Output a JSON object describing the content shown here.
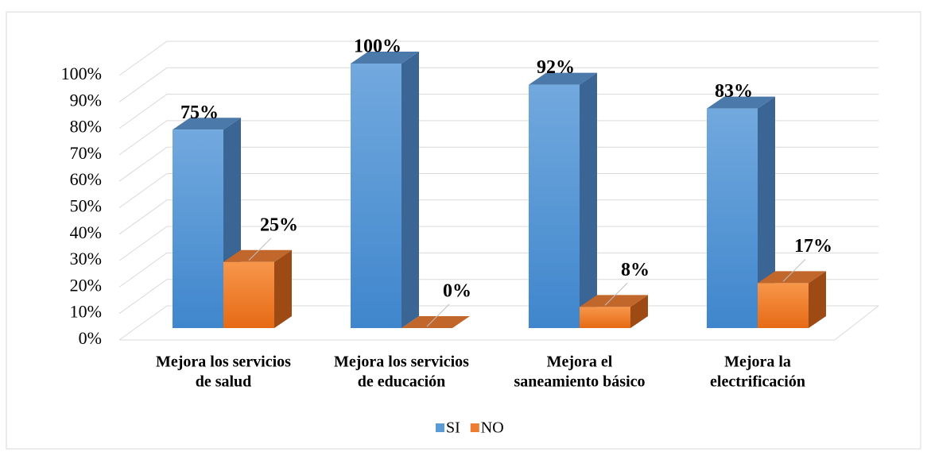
{
  "chart_data": {
    "type": "bar3d",
    "categories": [
      [
        "Mejora los servicios",
        "de salud"
      ],
      [
        "Mejora los servicios",
        "de educación"
      ],
      [
        "Mejora el",
        "saneamiento básico"
      ],
      [
        "Mejora la",
        "electrificación"
      ]
    ],
    "series": [
      {
        "name": "SI",
        "color": "#5b9bd5",
        "values": [
          75,
          100,
          92,
          83
        ],
        "value_labels": [
          "75%",
          "100%",
          "92%",
          "83%"
        ]
      },
      {
        "name": "NO",
        "color": "#ed7d31",
        "values": [
          25,
          0,
          8,
          17
        ],
        "value_labels": [
          "25%",
          "0%",
          "8%",
          "17%"
        ]
      }
    ],
    "ylim": [
      0,
      100
    ],
    "yticks": [
      {
        "value": 0,
        "label": "0%"
      },
      {
        "value": 10,
        "label": "10%"
      },
      {
        "value": 20,
        "label": "20%"
      },
      {
        "value": 30,
        "label": "30%"
      },
      {
        "value": 40,
        "label": "40%"
      },
      {
        "value": 50,
        "label": "50%"
      },
      {
        "value": 60,
        "label": "60%"
      },
      {
        "value": 70,
        "label": "70%"
      },
      {
        "value": 80,
        "label": "80%"
      },
      {
        "value": 90,
        "label": "90%"
      },
      {
        "value": 100,
        "label": "100%"
      }
    ],
    "grid": true,
    "legend": "bottom"
  }
}
